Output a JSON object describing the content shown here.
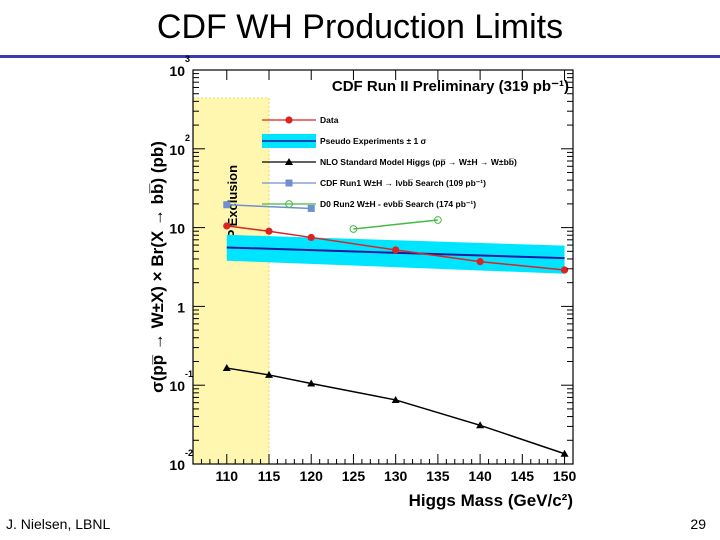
{
  "slide": {
    "title": "CDF WH Production Limits",
    "footer_left": "J. Nielsen, LBNL",
    "page_number": "29"
  },
  "colors": {
    "title_rule": "#3b3bb0",
    "data": "#dd2222",
    "pseudo_band": "#00e5ff",
    "pseudo_median": "#1a1aa0",
    "sm_higgs": "#000000",
    "run1": "#6f8fcf",
    "d0": "#44bb44",
    "lep_band": "#fff7b0"
  },
  "chart_data": {
    "type": "line",
    "title": "CDF Run II Preliminary (319 pb⁻¹)",
    "xlabel": "Higgs Mass (GeV/c²)",
    "ylabel": "σ(pp̅ → W±X) × Br(X → bb̅) (pb)",
    "xlim": [
      106,
      151
    ],
    "ylim": [
      0.01,
      1000
    ],
    "yscale": "log",
    "x_ticks": [
      110,
      115,
      120,
      125,
      130,
      135,
      140,
      145,
      150
    ],
    "y_ticks": [
      {
        "value": 0.01,
        "base": "10",
        "exp": "-2"
      },
      {
        "value": 0.1,
        "base": "10",
        "exp": "-1"
      },
      {
        "value": 1,
        "base": "1",
        "exp": ""
      },
      {
        "value": 10,
        "base": "10",
        "exp": ""
      },
      {
        "value": 100,
        "base": "10",
        "exp": "2"
      },
      {
        "value": 1000,
        "base": "10",
        "exp": "3"
      }
    ],
    "lep_exclusion": {
      "label": "LEP Exclusion",
      "x_range": [
        106,
        115
      ]
    },
    "series": [
      {
        "name": "Data",
        "style": "red-circle",
        "x": [
          110,
          115,
          120,
          130,
          140,
          150
        ],
        "values": [
          10.5,
          9.0,
          7.5,
          5.2,
          3.7,
          2.9
        ]
      },
      {
        "name": "Pseudo Experiments ± 1 σ",
        "style": "band",
        "x": [
          110,
          150
        ],
        "median": [
          5.6,
          4.1
        ],
        "low": [
          3.8,
          2.6
        ],
        "high": [
          8.1,
          5.9
        ]
      },
      {
        "name": "NLO Standard Model Higgs (pp̅ → W±H → W±bb̅)",
        "style": "black-triangle",
        "x": [
          110,
          115,
          120,
          130,
          140,
          150
        ],
        "values": [
          0.165,
          0.135,
          0.105,
          0.065,
          0.031,
          0.0135
        ]
      },
      {
        "name": "CDF Run1 W±H → lνbb̅ Search (109 pb⁻¹)",
        "style": "blue-square",
        "x": [
          110,
          120
        ],
        "values": [
          19.5,
          17.5
        ]
      },
      {
        "name": "D0 Run2 W±H - eνbb̅ Search (174 pb⁻¹)",
        "style": "green-open-circle",
        "x": [
          125,
          135
        ],
        "values": [
          9.6,
          12.5
        ]
      }
    ]
  }
}
